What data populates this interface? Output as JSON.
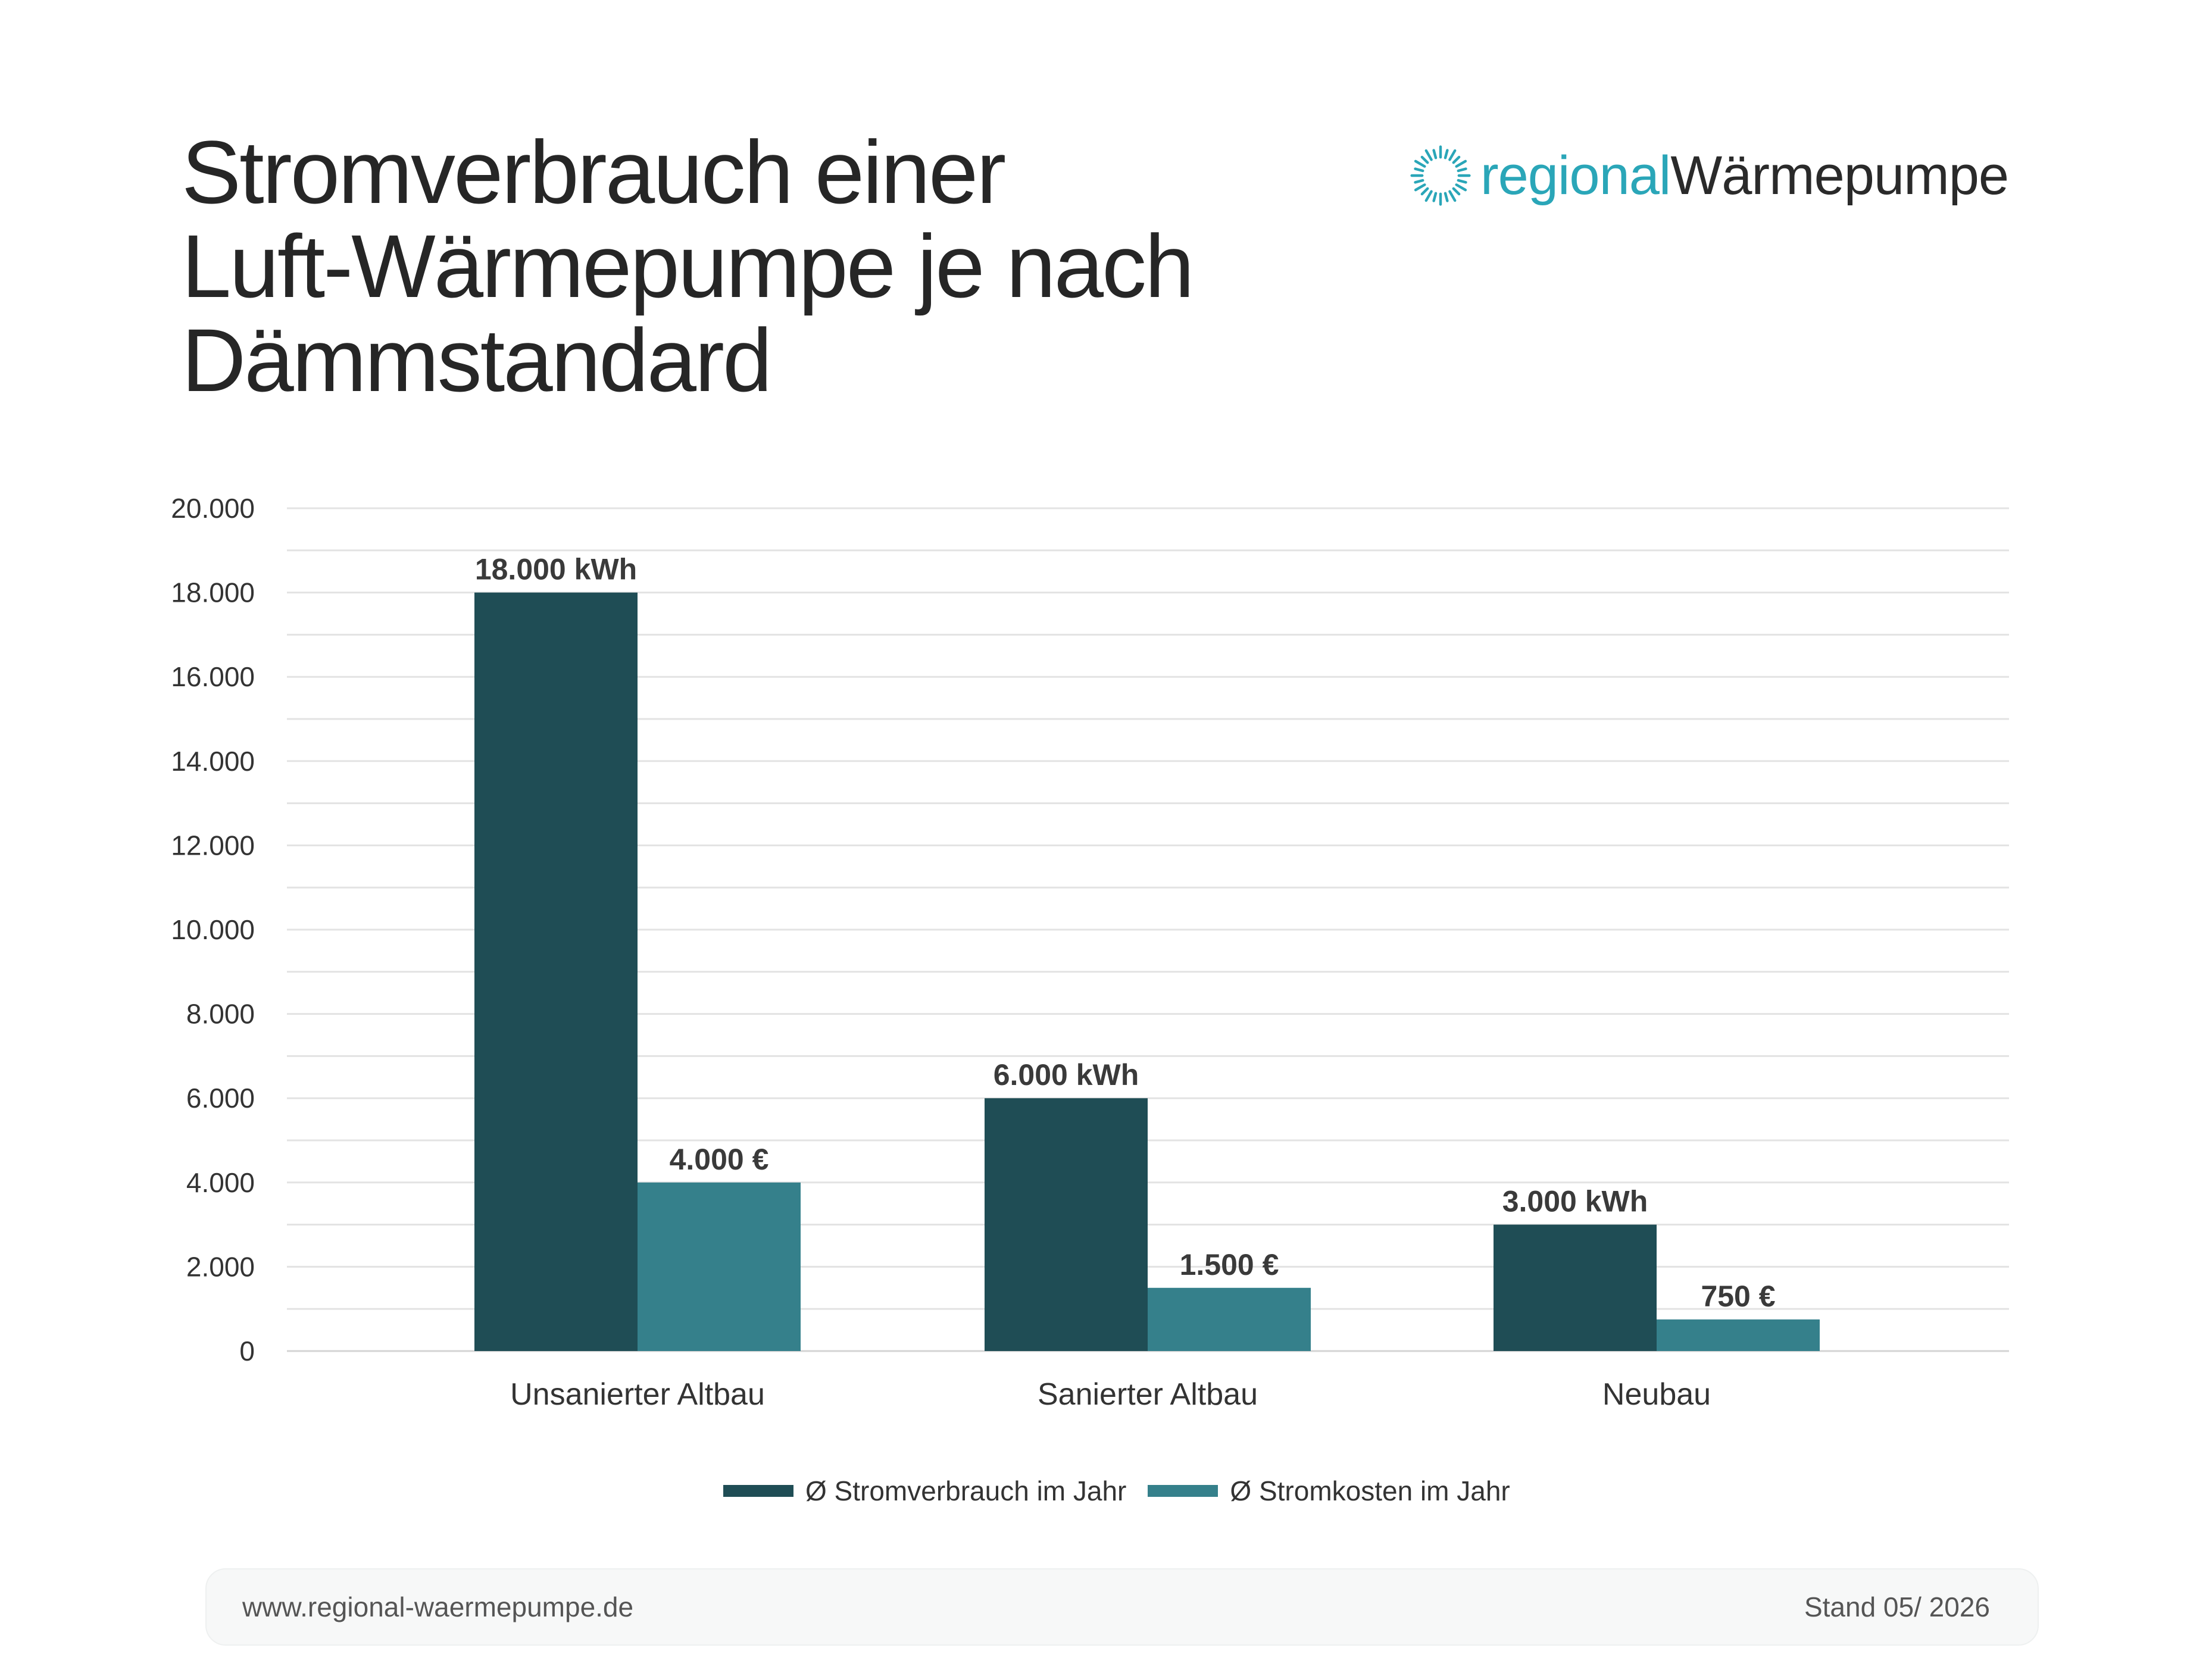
{
  "title_lines": [
    "Stromverbrauch einer",
    "Luft-Wärmepumpe je nach",
    "Dämmstandard"
  ],
  "logo": {
    "part1": "regional",
    "part2": "Wärmepumpe",
    "icon": "sunburst-logo-icon",
    "colors": {
      "accent": "#2aa6b8",
      "text": "#2a2a2a"
    }
  },
  "chart_data": {
    "type": "bar",
    "categories": [
      "Unsanierter Altbau",
      "Sanierter Altbau",
      "Neubau"
    ],
    "series": [
      {
        "name": "Ø Stromverbrauch im Jahr",
        "values": [
          18000,
          6000,
          3000
        ],
        "labels": [
          "18.000 kWh",
          "6.000 kWh",
          "3.000 kWh"
        ],
        "color": "#1f4d55"
      },
      {
        "name": "Ø Stromkosten im Jahr",
        "values": [
          4000,
          1500,
          750
        ],
        "labels": [
          "4.000 €",
          "1.500 €",
          "750 €"
        ],
        "color": "#35808b"
      }
    ],
    "ylim": [
      0,
      20000
    ],
    "yticks": [
      0,
      2000,
      4000,
      6000,
      8000,
      10000,
      12000,
      14000,
      16000,
      18000,
      20000
    ],
    "ytick_labels": [
      "0",
      "2.000",
      "4.000",
      "6.000",
      "8.000",
      "10.000",
      "12.000",
      "14.000",
      "16.000",
      "18.000",
      "20.000"
    ],
    "minor_step": 1000,
    "grid": true,
    "legend": "bottom"
  },
  "footer": {
    "url": "www.regional-waermepumpe.de",
    "stand": "Stand 05/ 2026"
  }
}
